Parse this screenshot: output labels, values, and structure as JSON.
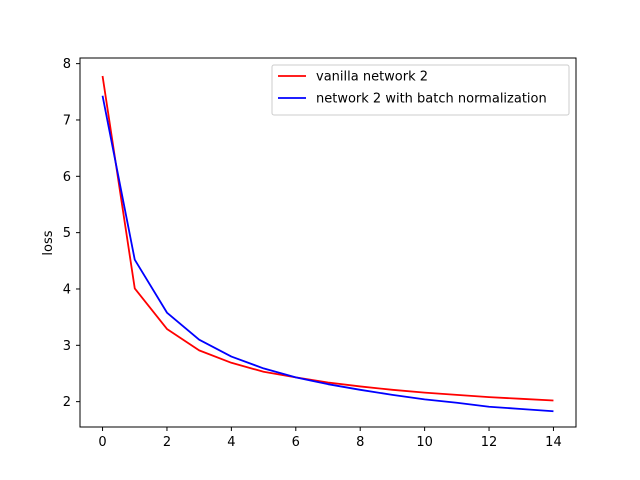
{
  "chart_data": {
    "type": "line",
    "title": "",
    "xlabel": "",
    "ylabel": "loss",
    "xlim": [
      -0.7,
      14.7
    ],
    "ylim": [
      1.55,
      8.1
    ],
    "x_ticks": [
      0,
      2,
      4,
      6,
      8,
      10,
      12,
      14
    ],
    "y_ticks": [
      2,
      3,
      4,
      5,
      6,
      7,
      8
    ],
    "grid": false,
    "legend_position": "top-right",
    "x": [
      0,
      1,
      2,
      3,
      4,
      5,
      6,
      7,
      8,
      9,
      10,
      11,
      12,
      13,
      14
    ],
    "series": [
      {
        "name": "vanilla network 2",
        "color": "#ff0000",
        "values": [
          7.78,
          4.01,
          3.29,
          2.91,
          2.69,
          2.53,
          2.43,
          2.34,
          2.27,
          2.21,
          2.16,
          2.12,
          2.08,
          2.05,
          2.02
        ]
      },
      {
        "name": "network 2 with batch normalization",
        "color": "#0000ff",
        "values": [
          7.43,
          4.52,
          3.58,
          3.1,
          2.8,
          2.59,
          2.43,
          2.31,
          2.21,
          2.12,
          2.04,
          1.98,
          1.91,
          1.87,
          1.83
        ]
      }
    ]
  }
}
